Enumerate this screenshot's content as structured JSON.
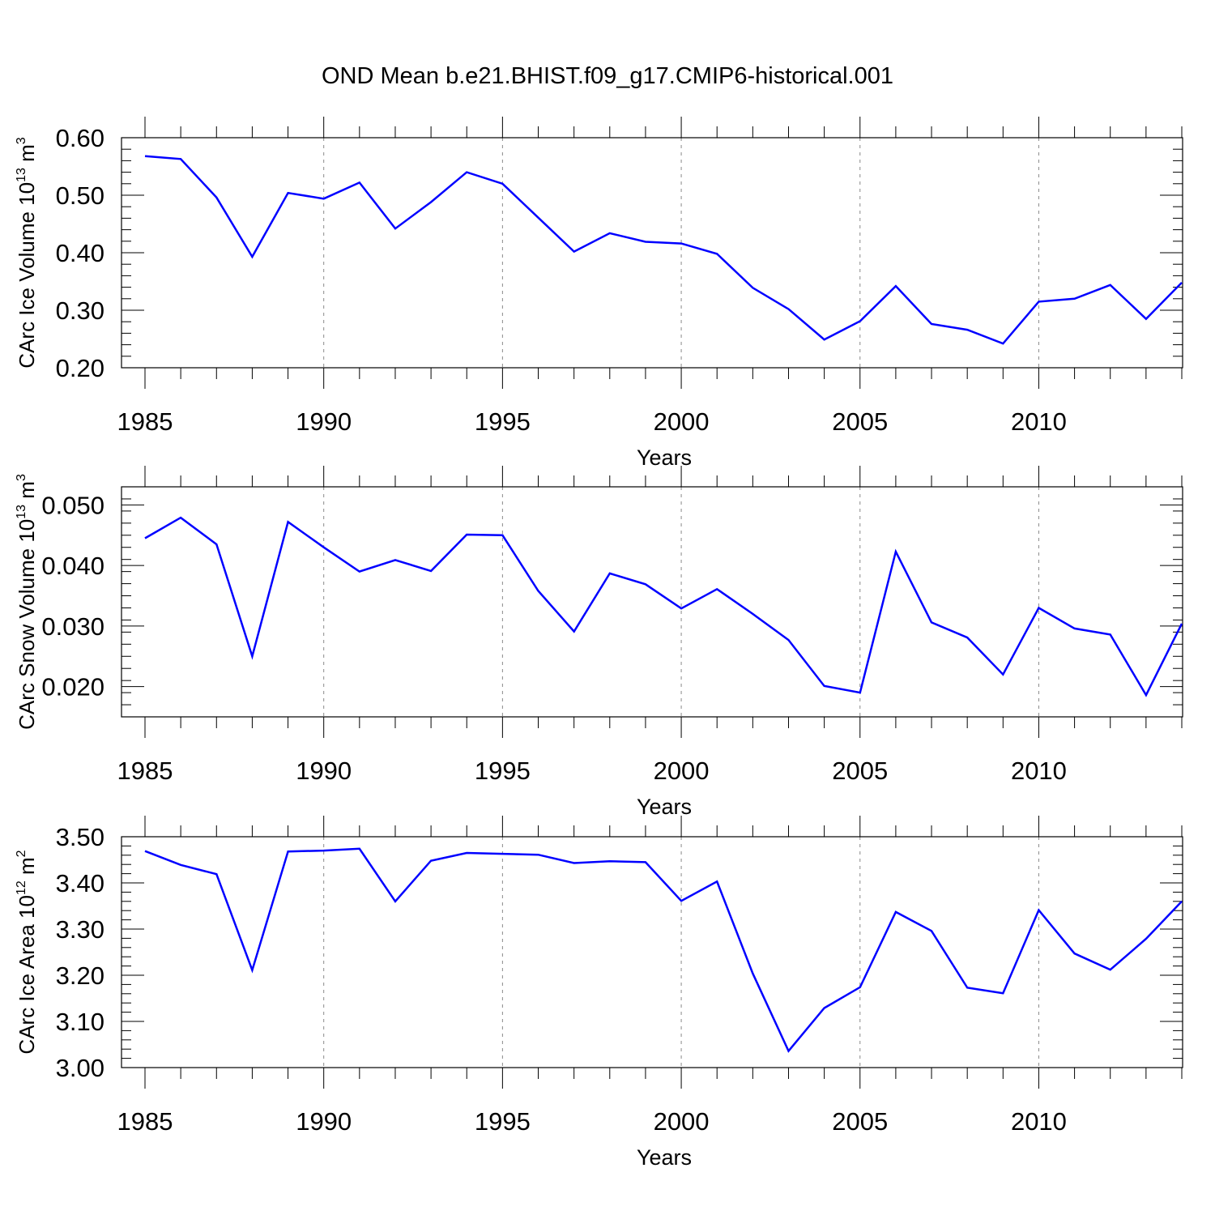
{
  "title": "OND Mean b.e21.BHIST.f09_g17.CMIP6-historical.001",
  "line_color": "#0000ff",
  "chart_data": [
    {
      "type": "line",
      "xlabel": "Years",
      "ylabel": {
        "main": "CArc Ice Volume 10",
        "exp": "13",
        "unit": " m",
        "unit_exp": "3"
      },
      "xlim": [
        1985,
        2014
      ],
      "ylim": [
        0.2,
        0.6
      ],
      "x_ticks": [
        1985,
        1990,
        1995,
        2000,
        2005,
        2010
      ],
      "x_tick_labels": [
        "1985",
        "1990",
        "1995",
        "2000",
        "2005",
        "2010"
      ],
      "y_ticks": [
        0.2,
        0.3,
        0.4,
        0.5,
        0.6
      ],
      "y_tick_labels": [
        "0.20",
        "0.30",
        "0.40",
        "0.50",
        "0.60"
      ],
      "y_minor_step": 0.02,
      "grid": "vertical dashed at major x ticks",
      "x": [
        1985,
        1986,
        1987,
        1988,
        1989,
        1990,
        1991,
        1992,
        1993,
        1994,
        1995,
        1996,
        1997,
        1998,
        1999,
        2000,
        2001,
        2002,
        2003,
        2004,
        2005,
        2006,
        2007,
        2008,
        2009,
        2010,
        2011,
        2012,
        2013,
        2014
      ],
      "values": [
        0.568,
        0.563,
        0.496,
        0.393,
        0.504,
        0.494,
        0.522,
        0.442,
        0.488,
        0.54,
        0.52,
        0.461,
        0.402,
        0.434,
        0.419,
        0.416,
        0.398,
        0.339,
        0.302,
        0.249,
        0.281,
        0.342,
        0.276,
        0.266,
        0.242,
        0.315,
        0.32,
        0.344,
        0.285,
        0.348
      ]
    },
    {
      "type": "line",
      "xlabel": "Years",
      "ylabel": {
        "main": "CArc Snow Volume 10",
        "exp": "13",
        "unit": " m",
        "unit_exp": "3"
      },
      "xlim": [
        1985,
        2014
      ],
      "ylim": [
        0.015,
        0.053
      ],
      "x_ticks": [
        1985,
        1990,
        1995,
        2000,
        2005,
        2010
      ],
      "x_tick_labels": [
        "1985",
        "1990",
        "1995",
        "2000",
        "2005",
        "2010"
      ],
      "y_ticks": [
        0.02,
        0.03,
        0.04,
        0.05
      ],
      "y_tick_labels": [
        "0.020",
        "0.030",
        "0.040",
        "0.050"
      ],
      "y_minor_step": 0.002,
      "grid": "vertical dashed at major x ticks",
      "x": [
        1985,
        1986,
        1987,
        1988,
        1989,
        1990,
        1991,
        1992,
        1993,
        1994,
        1995,
        1996,
        1997,
        1998,
        1999,
        2000,
        2001,
        2002,
        2003,
        2004,
        2005,
        2006,
        2007,
        2008,
        2009,
        2010,
        2011,
        2012,
        2013,
        2014
      ],
      "values": [
        0.0445,
        0.0479,
        0.0435,
        0.025,
        0.0472,
        0.043,
        0.039,
        0.0409,
        0.0391,
        0.0451,
        0.045,
        0.0358,
        0.0291,
        0.0387,
        0.0369,
        0.0329,
        0.0361,
        0.032,
        0.0277,
        0.0201,
        0.019,
        0.0423,
        0.0306,
        0.0281,
        0.022,
        0.033,
        0.0296,
        0.0286,
        0.0186,
        0.0304
      ]
    },
    {
      "type": "line",
      "xlabel": "Years",
      "ylabel": {
        "main": "CArc Ice Area 10",
        "exp": "12",
        "unit": " m",
        "unit_exp": "2"
      },
      "xlim": [
        1985,
        2014
      ],
      "ylim": [
        3.0,
        3.5
      ],
      "x_ticks": [
        1985,
        1990,
        1995,
        2000,
        2005,
        2010
      ],
      "x_tick_labels": [
        "1985",
        "1990",
        "1995",
        "2000",
        "2005",
        "2010"
      ],
      "y_ticks": [
        3.0,
        3.1,
        3.2,
        3.3,
        3.4,
        3.5
      ],
      "y_tick_labels": [
        "3.00",
        "3.10",
        "3.20",
        "3.30",
        "3.40",
        "3.50"
      ],
      "y_minor_step": 0.02,
      "grid": "vertical dashed at major x ticks",
      "x": [
        1985,
        1986,
        1987,
        1988,
        1989,
        1990,
        1991,
        1992,
        1993,
        1994,
        1995,
        1996,
        1997,
        1998,
        1999,
        2000,
        2001,
        2002,
        2003,
        2004,
        2005,
        2006,
        2007,
        2008,
        2009,
        2010,
        2011,
        2012,
        2013,
        2014
      ],
      "values": [
        3.469,
        3.439,
        3.419,
        3.211,
        3.468,
        3.47,
        3.474,
        3.36,
        3.448,
        3.465,
        3.463,
        3.461,
        3.443,
        3.447,
        3.445,
        3.361,
        3.403,
        3.204,
        3.036,
        3.129,
        3.174,
        3.337,
        3.296,
        3.173,
        3.161,
        3.341,
        3.247,
        3.212,
        3.279,
        3.36
      ]
    }
  ]
}
